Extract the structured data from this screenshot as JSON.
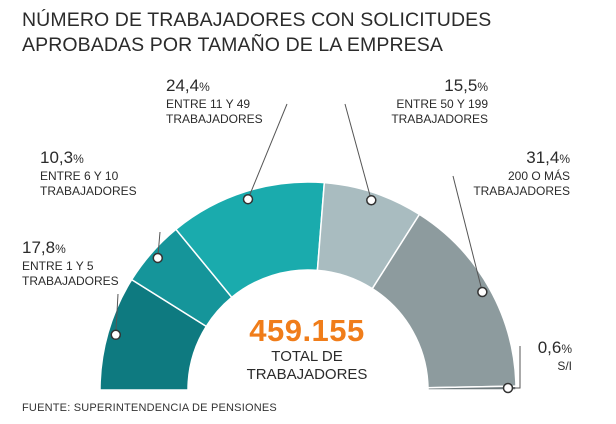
{
  "title": "NÚMERO DE TRABAJADORES CON SOLICITUDES APROBADAS POR TAMAÑO DE LA EMPRESA",
  "source": "FUENTE: SUPERINTENDENCIA DE PENSIONES",
  "total": {
    "value": "459.155",
    "caption_line1": "TOTAL DE",
    "caption_line2": "TRABAJADORES",
    "color": "#f07d1a"
  },
  "chart_data": {
    "type": "pie",
    "variant": "semicircle-donut",
    "title": "NÚMERO DE TRABAJADORES CON SOLICITUDES APROBADAS POR TAMAÑO DE LA EMPRESA",
    "unit": "%",
    "slices": [
      {
        "label_line1": "ENTRE 1 Y 5",
        "label_line2": "TRABAJADORES",
        "value": 17.8,
        "display": "17,8",
        "color": "#0e7a80"
      },
      {
        "label_line1": "ENTRE 6 Y 10",
        "label_line2": "TRABAJADORES",
        "value": 10.3,
        "display": "10,3",
        "color": "#15959a"
      },
      {
        "label_line1": "ENTRE 11 Y 49",
        "label_line2": "TRABAJADORES",
        "value": 24.4,
        "display": "24,4",
        "color": "#1aabad"
      },
      {
        "label_line1": "ENTRE 50 Y 199",
        "label_line2": "TRABAJADORES",
        "value": 15.5,
        "display": "15,5",
        "color": "#a9bcc0"
      },
      {
        "label_line1": "200 O MÁS",
        "label_line2": "TRABAJADORES",
        "value": 31.4,
        "display": "31,4",
        "color": "#8d9b9e"
      },
      {
        "label_line1": "S/I",
        "label_line2": "",
        "value": 0.6,
        "display": "0,6",
        "color": "#6f7b7e"
      }
    ]
  }
}
